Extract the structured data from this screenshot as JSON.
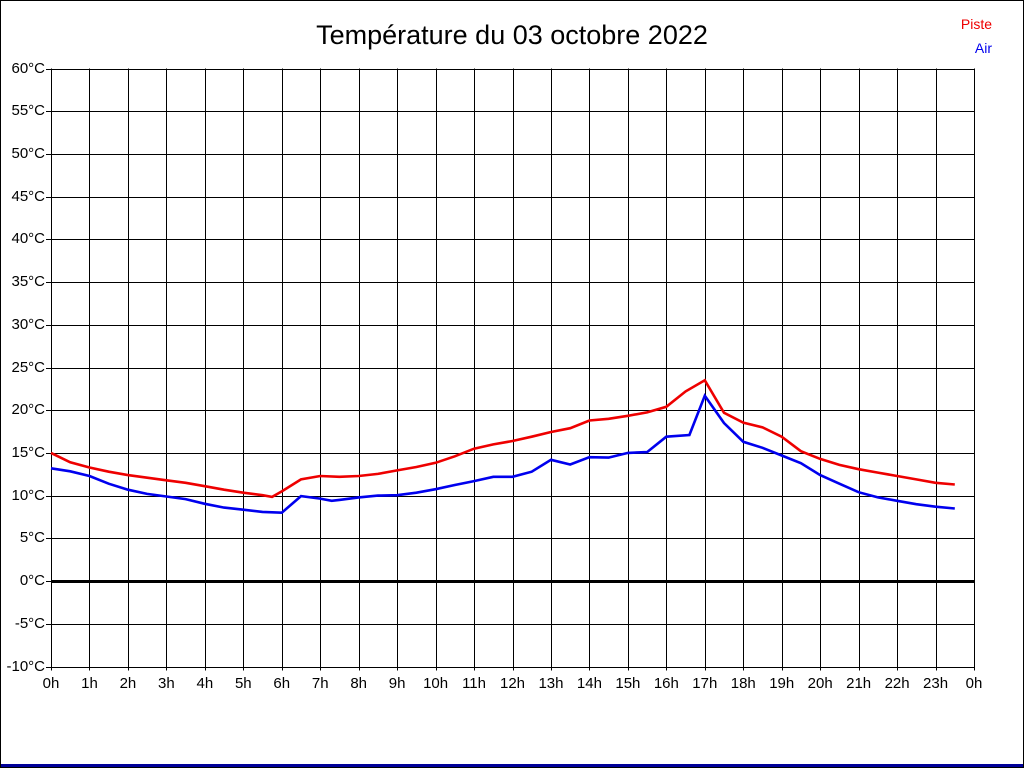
{
  "page": {
    "bottom_bar_color": "#000099"
  },
  "chart_data": {
    "type": "line",
    "title": "Température du 03 octobre 2022",
    "xlabel": "",
    "ylabel": "",
    "x_axis": {
      "min": 0,
      "max": 24,
      "unit": "h",
      "grid": true
    },
    "y_axis": {
      "min": -10,
      "max": 60,
      "step": 5,
      "unit": "°C",
      "grid": true
    },
    "zero_line_emphasized": true,
    "legend": {
      "position": "top-right"
    },
    "x_tick_labels": [
      "0h",
      "1h",
      "2h",
      "3h",
      "4h",
      "5h",
      "6h",
      "7h",
      "8h",
      "9h",
      "10h",
      "11h",
      "12h",
      "13h",
      "14h",
      "15h",
      "16h",
      "17h",
      "18h",
      "19h",
      "20h",
      "21h",
      "22h",
      "23h",
      "0h"
    ],
    "y_ticks": [
      {
        "value": 60,
        "label": "60°C"
      },
      {
        "value": 55,
        "label": "55°C"
      },
      {
        "value": 50,
        "label": "50°C"
      },
      {
        "value": 45,
        "label": "45°C"
      },
      {
        "value": 40,
        "label": "40°C"
      },
      {
        "value": 35,
        "label": "35°C"
      },
      {
        "value": 30,
        "label": "30°C"
      },
      {
        "value": 25,
        "label": "25°C"
      },
      {
        "value": 20,
        "label": "20°C"
      },
      {
        "value": 15,
        "label": "15°C"
      },
      {
        "value": 10,
        "label": "10°C"
      },
      {
        "value": 5,
        "label": "5°C"
      },
      {
        "value": 0,
        "label": "0°C"
      },
      {
        "value": -5,
        "label": "-5°C"
      },
      {
        "value": -10,
        "label": "-10°C"
      }
    ],
    "series": [
      {
        "name": "Piste",
        "color": "#ee0000",
        "points": [
          [
            0,
            15.0
          ],
          [
            0.5,
            13.9
          ],
          [
            1,
            13.3
          ],
          [
            1.5,
            12.8
          ],
          [
            2,
            12.4
          ],
          [
            2.5,
            12.1
          ],
          [
            3,
            11.8
          ],
          [
            3.5,
            11.5
          ],
          [
            4,
            11.1
          ],
          [
            4.5,
            10.7
          ],
          [
            5,
            10.35
          ],
          [
            5.5,
            10.05
          ],
          [
            5.75,
            9.85
          ],
          [
            6,
            10.5
          ],
          [
            6.5,
            11.9
          ],
          [
            7,
            12.3
          ],
          [
            7.5,
            12.2
          ],
          [
            8,
            12.3
          ],
          [
            8.5,
            12.55
          ],
          [
            9,
            12.95
          ],
          [
            9.5,
            13.35
          ],
          [
            10,
            13.85
          ],
          [
            10.5,
            14.6
          ],
          [
            11,
            15.5
          ],
          [
            11.5,
            16.0
          ],
          [
            12,
            16.4
          ],
          [
            12.5,
            16.9
          ],
          [
            13,
            17.45
          ],
          [
            13.5,
            17.9
          ],
          [
            14,
            18.8
          ],
          [
            14.5,
            19.0
          ],
          [
            15,
            19.35
          ],
          [
            15.5,
            19.75
          ],
          [
            16,
            20.4
          ],
          [
            16.5,
            22.2
          ],
          [
            17,
            23.5
          ],
          [
            17.5,
            19.7
          ],
          [
            18,
            18.55
          ],
          [
            18.5,
            18.0
          ],
          [
            19,
            16.9
          ],
          [
            19.5,
            15.2
          ],
          [
            20,
            14.3
          ],
          [
            20.5,
            13.6
          ],
          [
            21,
            13.1
          ],
          [
            21.5,
            12.7
          ],
          [
            22,
            12.3
          ],
          [
            22.5,
            11.9
          ],
          [
            23,
            11.5
          ],
          [
            23.5,
            11.3
          ]
        ]
      },
      {
        "name": "Air",
        "color": "#0000ee",
        "points": [
          [
            0,
            13.2
          ],
          [
            0.5,
            12.85
          ],
          [
            1,
            12.3
          ],
          [
            1.5,
            11.4
          ],
          [
            2,
            10.7
          ],
          [
            2.5,
            10.2
          ],
          [
            3,
            9.9
          ],
          [
            3.5,
            9.6
          ],
          [
            4,
            9.05
          ],
          [
            4.5,
            8.6
          ],
          [
            5,
            8.35
          ],
          [
            5.5,
            8.1
          ],
          [
            6,
            8.0
          ],
          [
            6.5,
            9.95
          ],
          [
            7,
            9.65
          ],
          [
            7.3,
            9.4
          ],
          [
            7.5,
            9.5
          ],
          [
            8,
            9.8
          ],
          [
            8.5,
            10.0
          ],
          [
            9,
            10.05
          ],
          [
            9.5,
            10.35
          ],
          [
            10,
            10.75
          ],
          [
            10.5,
            11.25
          ],
          [
            11,
            11.7
          ],
          [
            11.5,
            12.2
          ],
          [
            12,
            12.2
          ],
          [
            12.5,
            12.8
          ],
          [
            13,
            14.2
          ],
          [
            13.5,
            13.65
          ],
          [
            14,
            14.5
          ],
          [
            14.5,
            14.45
          ],
          [
            15,
            15.0
          ],
          [
            15.5,
            15.1
          ],
          [
            16,
            16.9
          ],
          [
            16.6,
            17.1
          ],
          [
            17,
            21.7
          ],
          [
            17.5,
            18.5
          ],
          [
            18,
            16.3
          ],
          [
            18.5,
            15.6
          ],
          [
            19,
            14.7
          ],
          [
            19.5,
            13.8
          ],
          [
            20,
            12.4
          ],
          [
            20.5,
            11.4
          ],
          [
            21,
            10.4
          ],
          [
            21.5,
            9.8
          ],
          [
            22,
            9.4
          ],
          [
            22.5,
            9.0
          ],
          [
            23,
            8.7
          ],
          [
            23.5,
            8.5
          ]
        ]
      }
    ]
  }
}
